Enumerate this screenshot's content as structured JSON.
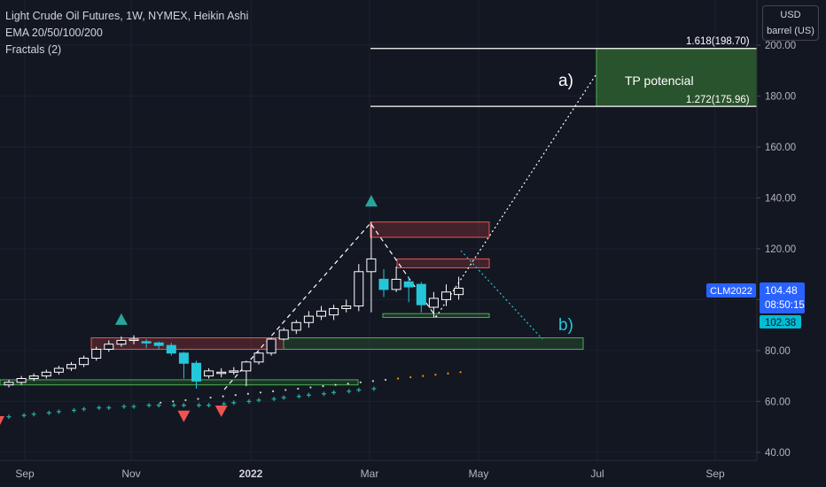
{
  "header": {
    "title": "Light Crude Oil Futures, 1W, NYMEX, Heikin Ashi",
    "indicator_1": "EMA 20/50/100/200",
    "indicator_2": "Fractals (2)"
  },
  "price_scale": {
    "currency": "USD",
    "unit": "barrel (US)",
    "ticks": [
      "200.00",
      "180.00",
      "160.00",
      "140.00",
      "120.00",
      "100.00",
      "80.00",
      "60.00",
      "40.00"
    ]
  },
  "time_axis": [
    "Sep",
    "Nov",
    "2022",
    "Mar",
    "May",
    "Jul",
    "Sep"
  ],
  "badges": {
    "symbol": "CLM2022",
    "last_price": "104.48",
    "countdown": "08:50:15",
    "ema_value": "102.38"
  },
  "annotations": {
    "fib_upper": "1.618(198.70)",
    "fib_lower": "1.272(175.96)",
    "tp_label": "TP potencial",
    "scenario_a": "a)",
    "scenario_b": "b)"
  },
  "colors": {
    "background": "#131722",
    "up_candle": "#ffffff",
    "down_candle": "#26c6da",
    "fractal_up": "#26a69a",
    "fractal_down": "#ef5350",
    "symbol_badge": "#2962ff",
    "ema_badge": "#00bcd4",
    "tp_zone": "#2e5e2e",
    "resistance_zone": "#ef5350",
    "support_zone": "#4caf50"
  },
  "chart_data": {
    "type": "candlestick",
    "title": "Light Crude Oil Futures, 1W, NYMEX, Heikin Ashi",
    "ylim": [
      40,
      200
    ],
    "y_ticks": [
      200,
      180,
      160,
      140,
      120,
      100,
      80,
      60,
      40
    ],
    "x_tick_labels": [
      "Sep",
      "Nov",
      "2022",
      "Mar",
      "May",
      "Jul",
      "Sep"
    ],
    "candles": [
      {
        "o": 66.5,
        "h": 68.5,
        "l": 65.5,
        "c": 67.5
      },
      {
        "o": 67.5,
        "h": 70.0,
        "l": 66.5,
        "c": 69.0
      },
      {
        "o": 69.0,
        "h": 71.0,
        "l": 68.0,
        "c": 70.0
      },
      {
        "o": 70.0,
        "h": 72.5,
        "l": 69.0,
        "c": 71.5
      },
      {
        "o": 71.5,
        "h": 74.0,
        "l": 70.5,
        "c": 73.0
      },
      {
        "o": 73.0,
        "h": 75.5,
        "l": 72.0,
        "c": 74.5
      },
      {
        "o": 74.5,
        "h": 78.0,
        "l": 73.5,
        "c": 77.0
      },
      {
        "o": 77.0,
        "h": 81.5,
        "l": 76.0,
        "c": 80.5
      },
      {
        "o": 80.5,
        "h": 84.0,
        "l": 79.5,
        "c": 82.5
      },
      {
        "o": 82.5,
        "h": 85.5,
        "l": 81.5,
        "c": 84.0
      },
      {
        "o": 84.0,
        "h": 86.0,
        "l": 82.5,
        "c": 84.5
      },
      {
        "o": 83.5,
        "h": 84.5,
        "l": 81.0,
        "c": 83.0
      },
      {
        "o": 83.0,
        "h": 83.5,
        "l": 80.5,
        "c": 82.0
      },
      {
        "o": 82.0,
        "h": 83.0,
        "l": 78.0,
        "c": 79.0
      },
      {
        "o": 79.0,
        "h": 79.5,
        "l": 69.0,
        "c": 75.0
      },
      {
        "o": 75.0,
        "h": 76.0,
        "l": 65.0,
        "c": 68.0
      },
      {
        "o": 70.0,
        "h": 73.0,
        "l": 69.0,
        "c": 72.0
      },
      {
        "o": 71.0,
        "h": 73.0,
        "l": 69.5,
        "c": 71.5
      },
      {
        "o": 71.5,
        "h": 73.5,
        "l": 70.5,
        "c": 72.0
      },
      {
        "o": 72.0,
        "h": 76.0,
        "l": 66.0,
        "c": 75.5
      },
      {
        "o": 75.5,
        "h": 79.5,
        "l": 74.5,
        "c": 79.0
      },
      {
        "o": 79.0,
        "h": 85.0,
        "l": 78.0,
        "c": 84.5
      },
      {
        "o": 84.5,
        "h": 89.0,
        "l": 84.0,
        "c": 88.0
      },
      {
        "o": 88.0,
        "h": 92.0,
        "l": 86.5,
        "c": 91.0
      },
      {
        "o": 91.0,
        "h": 95.5,
        "l": 89.0,
        "c": 93.5
      },
      {
        "o": 93.5,
        "h": 97.5,
        "l": 92.0,
        "c": 95.5
      },
      {
        "o": 94.0,
        "h": 98.0,
        "l": 92.0,
        "c": 96.5
      },
      {
        "o": 96.5,
        "h": 100.0,
        "l": 95.0,
        "c": 97.5
      },
      {
        "o": 97.5,
        "h": 114.0,
        "l": 95.5,
        "c": 111.0
      },
      {
        "o": 111.0,
        "h": 130.5,
        "l": 95.0,
        "c": 116.0
      },
      {
        "o": 108.0,
        "h": 112.0,
        "l": 101.0,
        "c": 104.0
      },
      {
        "o": 104.0,
        "h": 113.0,
        "l": 103.0,
        "c": 108.0
      },
      {
        "o": 107.0,
        "h": 109.0,
        "l": 99.0,
        "c": 105.0
      },
      {
        "o": 106.0,
        "h": 107.0,
        "l": 95.0,
        "c": 98.0
      },
      {
        "o": 97.0,
        "h": 103.0,
        "l": 93.0,
        "c": 100.5
      },
      {
        "o": 100.0,
        "h": 106.0,
        "l": 97.5,
        "c": 103.0
      },
      {
        "o": 102.0,
        "h": 109.0,
        "l": 100.0,
        "c": 104.5
      }
    ],
    "ema_dots_upper": [
      59.5,
      60.0,
      60.5,
      61.0,
      61.5,
      62.0,
      62.5,
      63.0,
      63.5,
      64.0,
      64.5,
      65.0,
      65.5,
      66.0,
      66.5,
      67.0,
      67.5,
      68.0,
      68.5,
      69.0,
      69.5,
      70.0,
      70.5,
      71.0,
      71.5
    ],
    "ema_dots_lower": [
      54.0,
      54.5,
      55.0,
      55.5,
      56.0,
      56.5,
      57.0,
      57.5,
      57.5,
      58.0,
      58.0,
      58.5,
      58.5,
      58.5,
      58.5,
      58.5,
      58.5,
      59.0,
      59.5,
      60.0,
      60.5,
      61.0,
      61.5,
      62.0,
      62.5,
      63.0,
      63.5,
      64.0,
      64.5,
      65.0
    ],
    "fractals_up": [
      {
        "candle": 9,
        "y": 91.5
      },
      {
        "candle": 29,
        "y": 138.0
      }
    ],
    "fractals_down": [
      {
        "candle": 14,
        "y": 55.0
      },
      {
        "candle": 17,
        "y": 57.0
      }
    ],
    "fib_levels": [
      {
        "ratio": 1.618,
        "price": 198.7
      },
      {
        "ratio": 1.272,
        "price": 175.96
      }
    ],
    "tp_zone": [
      175.96,
      198.7
    ],
    "resistance_zones": [
      [
        124.5,
        130.5
      ],
      [
        112.5,
        116.0
      ],
      [
        80.5,
        85.0
      ]
    ],
    "support_zones": [
      [
        66.5,
        68.5
      ],
      [
        80.5,
        85.0
      ],
      [
        93.0,
        94.5
      ]
    ],
    "last_price": 104.48,
    "ema_value": 102.38
  }
}
